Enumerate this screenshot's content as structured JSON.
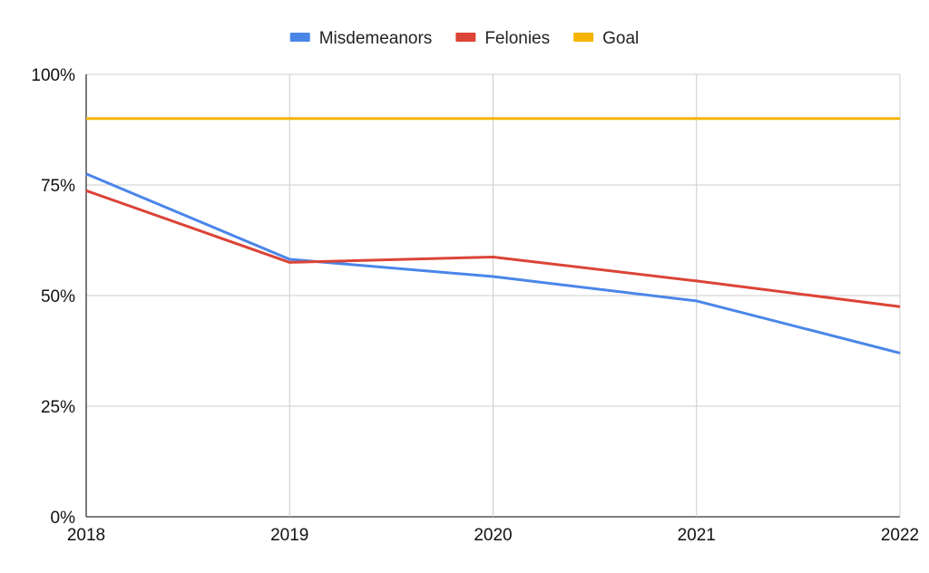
{
  "chart_data": {
    "type": "line",
    "title": "",
    "xlabel": "",
    "ylabel": "",
    "categories": [
      "2018",
      "2019",
      "2020",
      "2021",
      "2022"
    ],
    "y_ticks": [
      {
        "value": 0,
        "label": "0%"
      },
      {
        "value": 25,
        "label": "25%"
      },
      {
        "value": 50,
        "label": "50%"
      },
      {
        "value": 75,
        "label": "75%"
      },
      {
        "value": 100,
        "label": "100%"
      }
    ],
    "ylim": [
      0,
      100
    ],
    "grid": true,
    "legend_position": "top",
    "series": [
      {
        "name": "Misdemeanors",
        "color": "#4a86e8",
        "values": [
          77.5,
          58.2,
          54.3,
          48.8,
          37.0
        ]
      },
      {
        "name": "Felonies",
        "color": "#db4437",
        "values": [
          73.7,
          57.5,
          58.7,
          53.3,
          47.5
        ]
      },
      {
        "name": "Goal",
        "color": "#f4b400",
        "values": [
          90,
          90,
          90,
          90,
          90
        ]
      }
    ]
  }
}
